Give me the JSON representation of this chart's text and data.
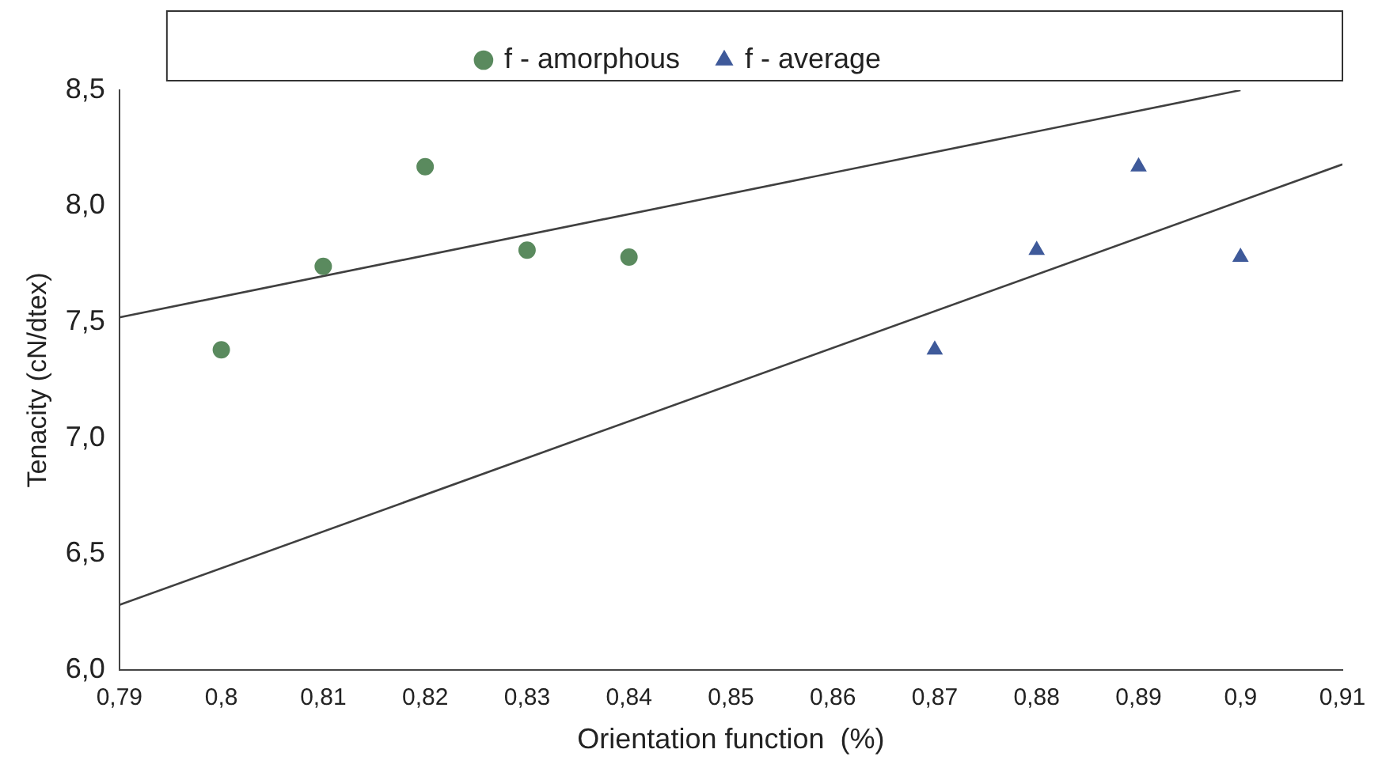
{
  "chart_data": {
    "type": "scatter",
    "xlabel": "Orientation function  (%)",
    "ylabel": "Tenacity (cN/dtex)",
    "xlim": [
      0.79,
      0.91
    ],
    "ylim": [
      6.0,
      8.5
    ],
    "xticks": [
      {
        "value": 0.79,
        "label": "0,79"
      },
      {
        "value": 0.8,
        "label": "0,8"
      },
      {
        "value": 0.81,
        "label": "0,81"
      },
      {
        "value": 0.82,
        "label": "0,82"
      },
      {
        "value": 0.83,
        "label": "0,83"
      },
      {
        "value": 0.84,
        "label": "0,84"
      },
      {
        "value": 0.85,
        "label": "0,85"
      },
      {
        "value": 0.86,
        "label": "0,86"
      },
      {
        "value": 0.87,
        "label": "0,87"
      },
      {
        "value": 0.88,
        "label": "0,88"
      },
      {
        "value": 0.89,
        "label": "0,89"
      },
      {
        "value": 0.9,
        "label": "0,9"
      },
      {
        "value": 0.91,
        "label": "0,91"
      }
    ],
    "yticks": [
      {
        "value": 6.0,
        "label": "6,0"
      },
      {
        "value": 6.5,
        "label": "6,5"
      },
      {
        "value": 7.0,
        "label": "7,0"
      },
      {
        "value": 7.5,
        "label": "7,5"
      },
      {
        "value": 8.0,
        "label": "8,0"
      },
      {
        "value": 8.5,
        "label": "8,5"
      }
    ],
    "grid": false,
    "legend": "top",
    "series": [
      {
        "name": "f - amorphous",
        "color": "#5a8a5e",
        "marker": "circle",
        "x": [
          0.8,
          0.81,
          0.82,
          0.83,
          0.84
        ],
        "values": [
          7.38,
          7.74,
          8.17,
          7.81,
          7.78
        ]
      },
      {
        "name": "f - average",
        "color": "#3f5a9a",
        "marker": "triangle",
        "x": [
          0.87,
          0.88,
          0.89,
          0.9
        ],
        "values": [
          7.38,
          7.81,
          8.17,
          7.78
        ]
      },
      {
        "type": "line",
        "color": "#404040",
        "marker": "none",
        "x": [
          0.79,
          0.9
        ],
        "values": [
          7.52,
          8.5
        ]
      },
      {
        "type": "line",
        "color": "#404040",
        "marker": "none",
        "x": [
          0.79,
          0.91
        ],
        "values": [
          6.28,
          8.18
        ]
      }
    ]
  }
}
